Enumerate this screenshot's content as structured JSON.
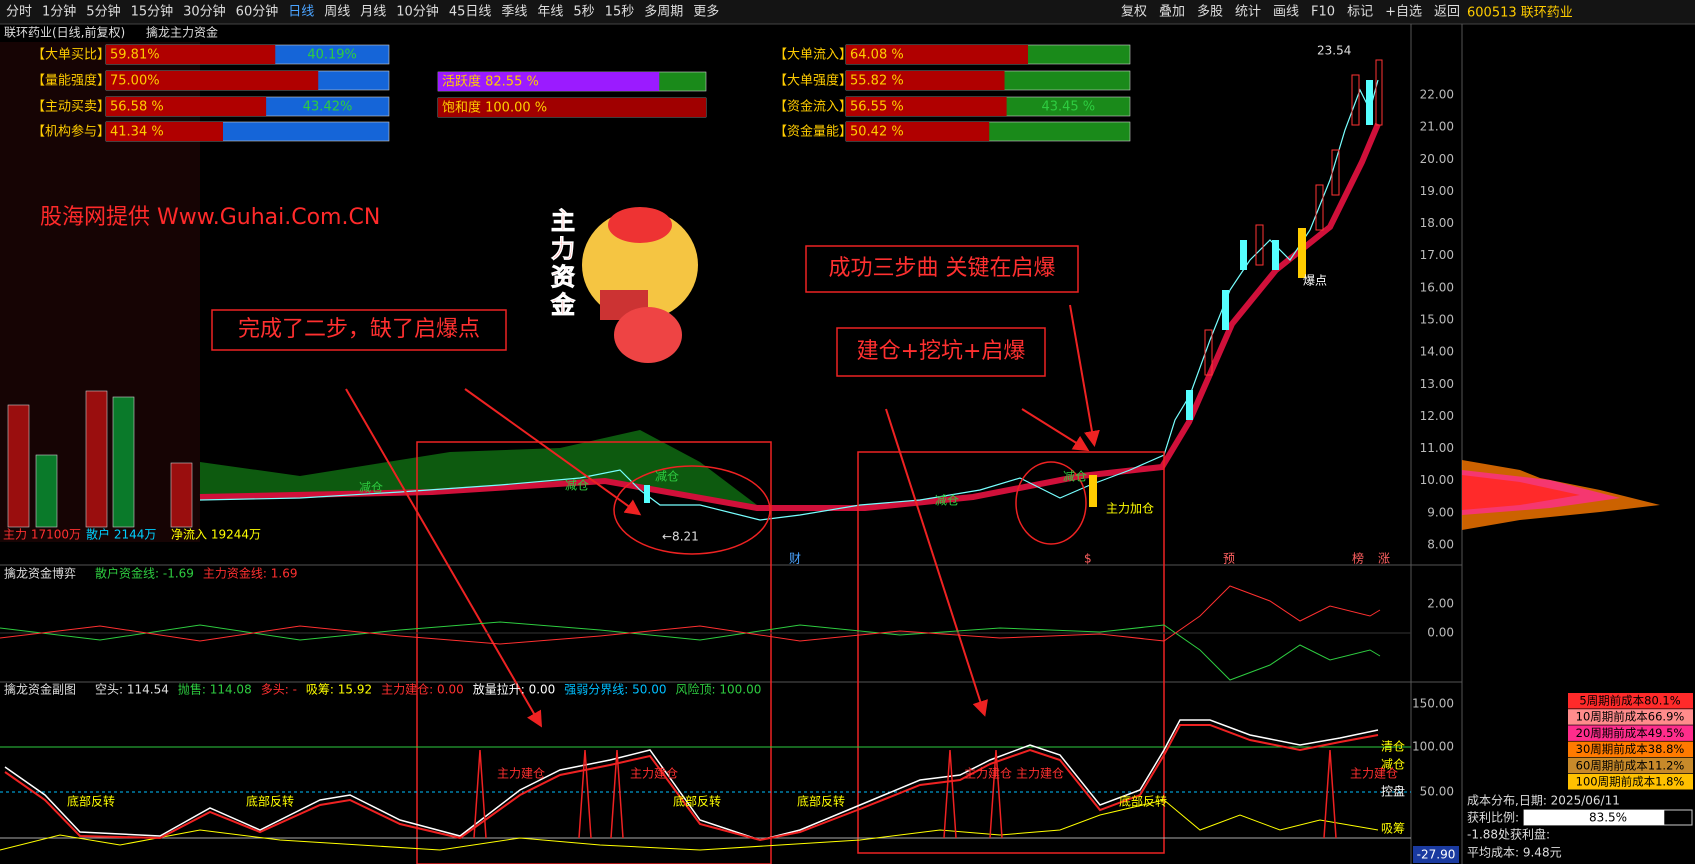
{
  "toolbar": {
    "periods": [
      "分时",
      "1分钟",
      "5分钟",
      "15分钟",
      "30分钟",
      "60分钟",
      "日线",
      "周线",
      "月线",
      "10分钟",
      "45日线",
      "季线",
      "年线",
      "5秒",
      "15秒",
      "多周期",
      "更多"
    ],
    "tools": [
      "复权",
      "叠加",
      "多股",
      "统计",
      "画线",
      "F10",
      "标记",
      "+自选",
      "返回"
    ],
    "stock": "600513 联环药业"
  },
  "main": {
    "title": "联环药业(日线,前复权)",
    "indicator": "擒龙主力资金",
    "gauges_left": {
      "color": "#b00000",
      "rest_color": "#1565d8",
      "items": [
        {
          "label": "【大单买比】",
          "value": 59.81,
          "value_label": "59.81%",
          "rest_label": "40.19%"
        },
        {
          "label": "【量能强度】",
          "value": 75,
          "value_label": "75.00%"
        },
        {
          "label": "【主动买卖】",
          "value": 56.58,
          "value_label": "56.58 %",
          "rest_label": "43.42%"
        },
        {
          "label": "【机构参与】",
          "value": 41.34,
          "value_label": "41.34 %"
        }
      ]
    },
    "gauges_mid": {
      "rest_color": "#1a8a1a",
      "items": [
        {
          "color": "#9b1bff",
          "value": 82.55,
          "value_label": "活跃度 82.55 %"
        },
        {
          "color": "#a00000",
          "value": 100,
          "value_label": "饱和度 100.00 %"
        }
      ]
    },
    "gauges_right": {
      "color": "#b00000",
      "rest_color": "#1a8a1a",
      "items": [
        {
          "label": "【大单流入】",
          "value": 64.08,
          "value_label": "64.08 %"
        },
        {
          "label": "【大单强度】",
          "value": 55.82,
          "value_label": "55.82 %"
        },
        {
          "label": "【资金流入】",
          "value": 56.55,
          "value_label": "56.55 %",
          "rest_label": "43.45 %"
        },
        {
          "label": "【资金量能】",
          "value": 50.42,
          "value_label": "50.42 %"
        }
      ]
    },
    "flows": [
      "主力 17100万",
      "散户 2144万",
      "净流入 19244万"
    ],
    "watermark": "股海网提供 Www.Guhai.Com.CN",
    "badge": "主力资金",
    "callouts": [
      "完成了二步，缺了启爆点",
      "成功三步曲 关键在启爆",
      "建仓+挖坑+启爆"
    ],
    "labels": [
      "减仓",
      "减仓",
      "减仓",
      "减仓",
      "减仓",
      "←8.21",
      "23.54",
      "爆点",
      "主力加仓"
    ],
    "markers": [
      "财",
      "$",
      "预",
      "榜",
      "涨"
    ],
    "price_axis": [
      "22.00",
      "21.00",
      "20.00",
      "19.00",
      "18.00",
      "17.00",
      "16.00",
      "15.00",
      "14.00",
      "13.00",
      "12.00",
      "11.00",
      "10.00",
      "9.00",
      "8.00"
    ]
  },
  "indicator1": {
    "title": "擒龙资金博弈",
    "items": [
      {
        "text": "散户资金线: -1.69",
        "color": "#2ecc40"
      },
      {
        "text": "主力资金线: 1.69",
        "color": "#ff3030"
      }
    ],
    "axis": [
      "2.00",
      "0.00"
    ]
  },
  "indicator2": {
    "title": "擒龙资金副图",
    "items": [
      {
        "text": "空头: 114.54",
        "color": "#e0e0e0"
      },
      {
        "text": "抛售: 114.08",
        "color": "#2ecc40"
      },
      {
        "text": "多头: -",
        "color": "#ff3030"
      },
      {
        "text": "吸筹: 15.92",
        "color": "#ffff00"
      },
      {
        "text": "主力建仓: 0.00",
        "color": "#ff3030"
      },
      {
        "text": "放量拉升: 0.00",
        "color": "#ffffff"
      },
      {
        "text": "强弱分界线: 50.00",
        "color": "#00bfff"
      },
      {
        "text": "风险顶: 100.00",
        "color": "#2ecc40"
      }
    ],
    "axis": [
      "150.00",
      "100.00",
      "50.00"
    ],
    "axis_low": "-27.90",
    "side_labels": [
      "清仓",
      "减仓",
      "主力建仓",
      "控盘",
      "吸筹"
    ],
    "labels": [
      "底部反转",
      "底部反转",
      "底部反转",
      "底部反转",
      "底部反转",
      "主力建仓",
      "主力建仓",
      "主力建仓",
      "主力建仓"
    ]
  },
  "cost": {
    "rows": [
      {
        "text": "5周期前成本80.1%",
        "color": "#ff2a2a"
      },
      {
        "text": "10周期前成本66.9%",
        "color": "#ff8c8c"
      },
      {
        "text": "20周期前成本49.5%",
        "color": "#ff2d8c"
      },
      {
        "text": "30周期前成本38.8%",
        "color": "#ff7a00"
      },
      {
        "text": "60周期前成本11.2%",
        "color": "#c88a2a"
      },
      {
        "text": "100周期前成本1.8%",
        "color": "#ffc000"
      }
    ],
    "date": "成本分布,日期: 2025/06/11",
    "profit_label": "获利比例:",
    "profit": {
      "value": 83.5,
      "label": "83.5%"
    },
    "profit_at": "-1.88处获利盘:",
    "avg": "平均成本: 9.48元"
  }
}
